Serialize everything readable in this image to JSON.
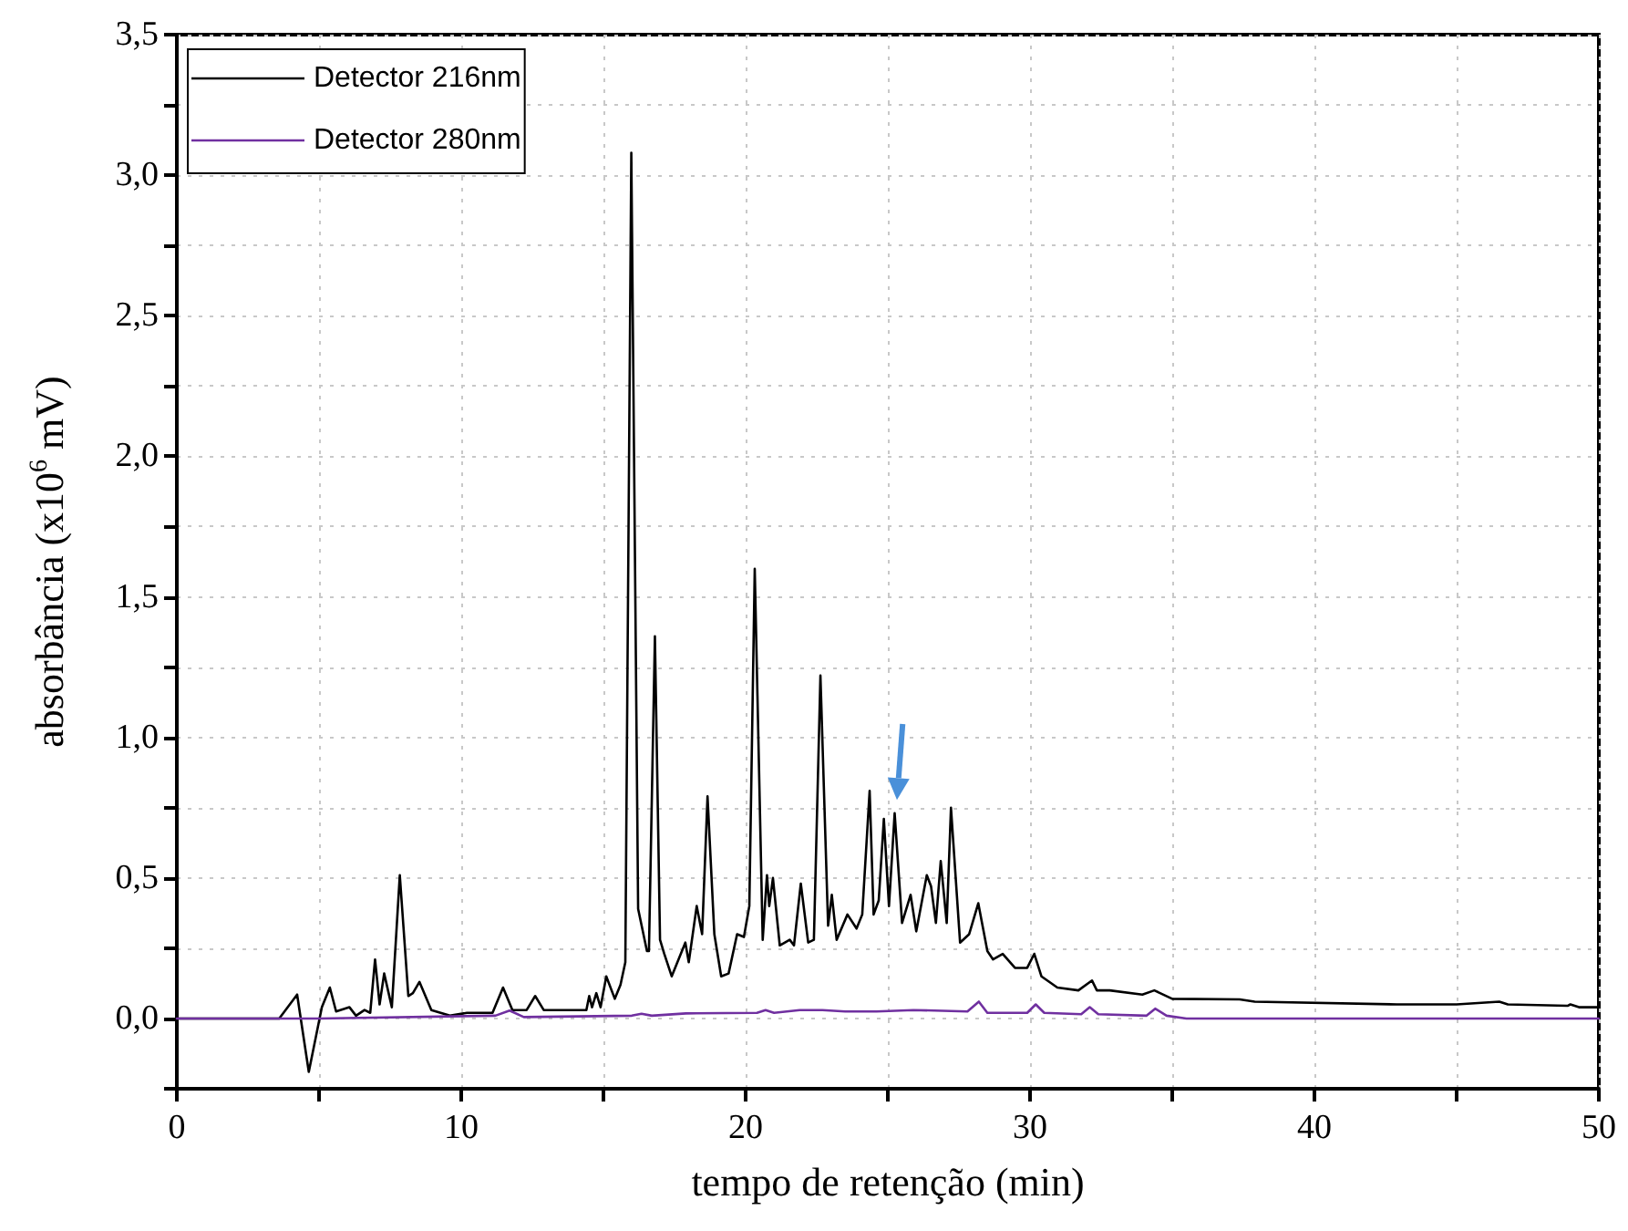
{
  "chart_data": {
    "type": "line",
    "xlabel": "tempo de retenção (min)",
    "ylabel": "absorbância (x10$^{6}$ mV)",
    "xlim": [
      0,
      50
    ],
    "xticks": [
      0,
      {
        "value": 5,
        "label": null
      },
      10,
      {
        "value": 15,
        "label": null
      },
      20,
      {
        "value": 25,
        "label": null
      },
      30,
      {
        "value": 35,
        "label": null
      },
      40,
      {
        "value": 45,
        "label": null
      },
      50
    ],
    "ylim": [
      -0.25,
      3.5
    ],
    "yticks": [
      {
        "value": -0.25,
        "label": null
      },
      {
        "value": 0,
        "label": "0,0"
      },
      {
        "value": 0.25,
        "label": null
      },
      {
        "value": 0.5,
        "label": "0,5"
      },
      {
        "value": 0.75,
        "label": null
      },
      {
        "value": 1,
        "label": "1,0"
      },
      {
        "value": 1.25,
        "label": null
      },
      {
        "value": 1.5,
        "label": "1,5"
      },
      {
        "value": 1.75,
        "label": null
      },
      {
        "value": 2,
        "label": "2,0"
      },
      {
        "value": 2.25,
        "label": null
      },
      {
        "value": 2.5,
        "label": "2,5"
      },
      {
        "value": 2.75,
        "label": null
      },
      {
        "value": 3,
        "label": "3,0"
      },
      {
        "value": 3.25,
        "label": null
      },
      {
        "value": 3.5,
        "label": "3,5"
      }
    ],
    "grid": true,
    "legend": "top left",
    "marker": "none",
    "line_style": "solid",
    "series": [
      {
        "name": "Detector 216nm",
        "color": "#000000",
        "x": [
          0,
          3.6,
          4.23,
          4.64,
          5.1,
          5.38,
          5.6,
          6.07,
          6.3,
          6.6,
          6.8,
          6.97,
          7.13,
          7.29,
          7.56,
          7.84,
          8.14,
          8.3,
          8.53,
          8.95,
          9.6,
          10.2,
          11.1,
          11.47,
          11.8,
          12.3,
          12.6,
          12.9,
          14.4,
          14.5,
          14.6,
          14.75,
          14.9,
          15.1,
          15.4,
          15.6,
          15.77,
          15.98,
          16.22,
          16.53,
          16.6,
          16.81,
          16.99,
          17.14,
          17.4,
          17.88,
          18.0,
          18.28,
          18.47,
          18.66,
          18.9,
          19.14,
          19.4,
          19.7,
          19.94,
          20.13,
          20.32,
          20.6,
          20.75,
          20.83,
          20.96,
          21.2,
          21.55,
          21.7,
          21.94,
          22.2,
          22.4,
          22.63,
          22.9,
          23.03,
          23.2,
          23.58,
          23.9,
          24.1,
          24.36,
          24.5,
          24.68,
          24.86,
          25.04,
          25.24,
          25.5,
          25.8,
          26.0,
          26.37,
          26.52,
          26.69,
          26.86,
          27.07,
          27.22,
          27.54,
          27.86,
          28.18,
          28.5,
          28.7,
          29.04,
          29.47,
          29.9,
          30.15,
          30.4,
          30.96,
          31.7,
          32.18,
          32.35,
          32.8,
          33.95,
          34.37,
          35.0,
          37.37,
          37.9,
          42.9,
          45.0,
          46.5,
          46.8,
          48.9,
          49.0,
          49.3,
          50
        ],
        "values": [
          0,
          0,
          0.085,
          -0.19,
          0.04,
          0.11,
          0.025,
          0.04,
          0.01,
          0.03,
          0.02,
          0.21,
          0.05,
          0.16,
          0.04,
          0.51,
          0.08,
          0.09,
          0.13,
          0.03,
          0.01,
          0.02,
          0.02,
          0.11,
          0.03,
          0.03,
          0.08,
          0.03,
          0.03,
          0.08,
          0.04,
          0.09,
          0.04,
          0.15,
          0.07,
          0.12,
          0.2,
          3.08,
          0.39,
          0.24,
          0.24,
          1.36,
          0.28,
          0.23,
          0.15,
          0.27,
          0.2,
          0.4,
          0.3,
          0.79,
          0.3,
          0.15,
          0.16,
          0.3,
          0.29,
          0.4,
          1.6,
          0.28,
          0.51,
          0.4,
          0.5,
          0.26,
          0.28,
          0.26,
          0.48,
          0.27,
          0.28,
          1.22,
          0.33,
          0.44,
          0.28,
          0.37,
          0.32,
          0.37,
          0.81,
          0.37,
          0.42,
          0.71,
          0.4,
          0.73,
          0.34,
          0.44,
          0.31,
          0.51,
          0.47,
          0.34,
          0.56,
          0.34,
          0.75,
          0.27,
          0.3,
          0.41,
          0.24,
          0.21,
          0.23,
          0.18,
          0.18,
          0.23,
          0.15,
          0.11,
          0.1,
          0.135,
          0.1,
          0.1,
          0.085,
          0.1,
          0.07,
          0.068,
          0.06,
          0.05,
          0.05,
          0.06,
          0.05,
          0.045,
          0.05,
          0.04,
          0.04
        ]
      },
      {
        "name": "Detector 280nm",
        "color": "#7030a0",
        "x": [
          0,
          5,
          11.2,
          11.7,
          12.2,
          16.0,
          16.34,
          16.7,
          17.9,
          20.4,
          20.7,
          21.0,
          21.9,
          22.7,
          23.5,
          24.6,
          25.9,
          27.8,
          28.2,
          28.5,
          29.9,
          30.2,
          30.5,
          31.8,
          32.1,
          32.4,
          34.1,
          34.4,
          34.8,
          35.5,
          50
        ],
        "values": [
          0,
          0,
          0.01,
          0.028,
          0.005,
          0.01,
          0.017,
          0.01,
          0.018,
          0.02,
          0.03,
          0.02,
          0.03,
          0.03,
          0.025,
          0.025,
          0.03,
          0.025,
          0.06,
          0.02,
          0.02,
          0.05,
          0.02,
          0.015,
          0.04,
          0.015,
          0.01,
          0.035,
          0.01,
          0,
          0
        ]
      }
    ]
  }
}
